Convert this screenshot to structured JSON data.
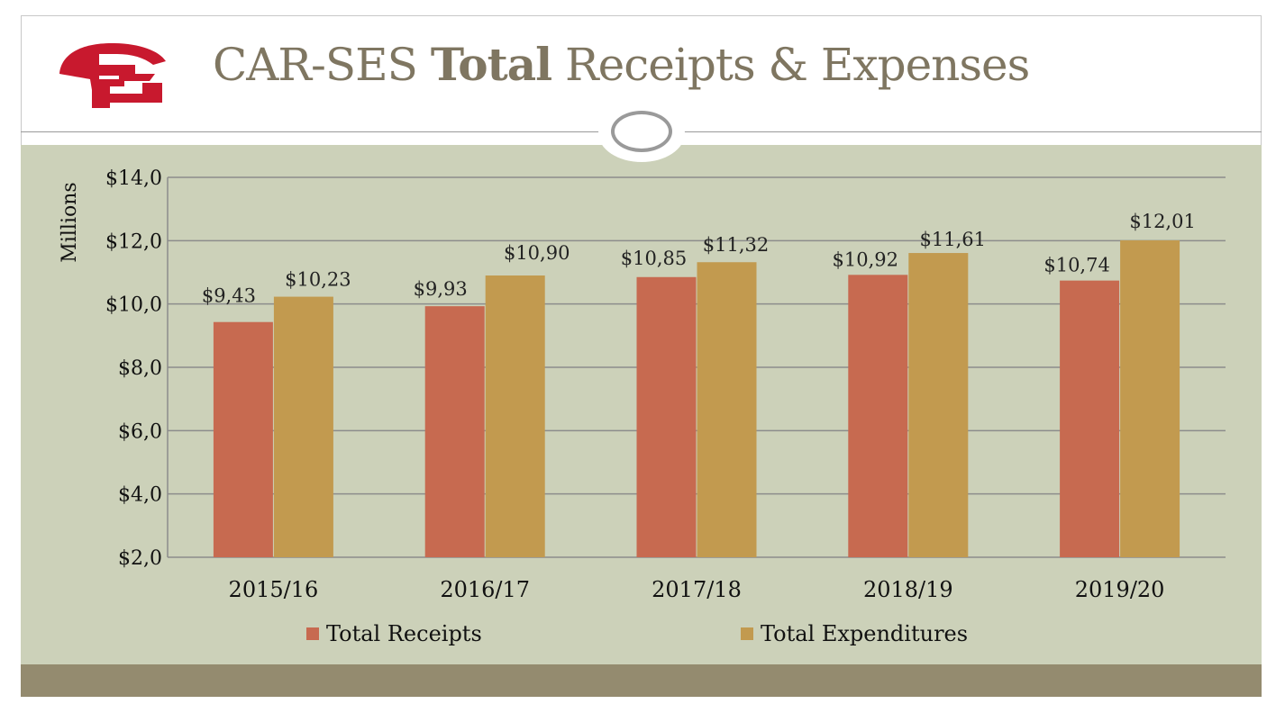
{
  "slide": {
    "title_part1": "CAR-SES ",
    "title_bold": "Total",
    "title_part2": " Receipts & Expenses",
    "colors": {
      "accent": "#c8192e",
      "title": "#7f7661",
      "panel": "#ccd1b9",
      "footer": "#948b6f"
    }
  },
  "chart_data": {
    "type": "bar",
    "categories": [
      "2015/16",
      "2016/17",
      "2017/18",
      "2018/19",
      "2019/20"
    ],
    "series": [
      {
        "name": "Total Receipts",
        "color": "#c76a50",
        "values": [
          9.43,
          9.93,
          10.85,
          10.92,
          10.74
        ],
        "labels": [
          "$9,43",
          "$9,93",
          "$10,85",
          "$10,92",
          "$10,74"
        ]
      },
      {
        "name": "Total Expenditures",
        "color": "#c29a4f",
        "values": [
          10.23,
          10.9,
          11.32,
          11.61,
          12.01
        ],
        "labels": [
          "$10,23",
          "$10,90",
          "$11,32",
          "$11,61",
          "$12,01"
        ]
      }
    ],
    "ylabel": "Millions",
    "ylim": [
      2,
      14
    ],
    "yticks": [
      2,
      4,
      6,
      8,
      10,
      12,
      14
    ],
    "ytick_labels": [
      "$2,0",
      "$4,0",
      "$6,0",
      "$8,0",
      "$10,0",
      "$12,0",
      "$14,0"
    ],
    "grid": true,
    "legend": "bottom"
  }
}
